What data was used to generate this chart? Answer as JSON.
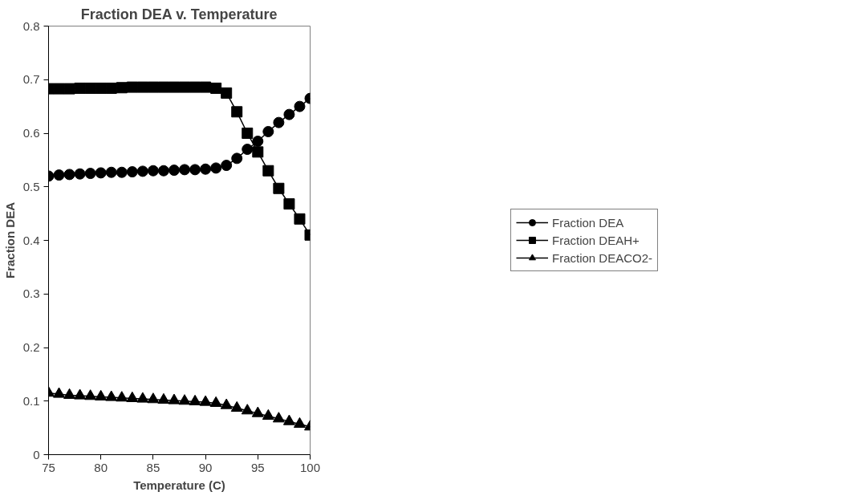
{
  "chart_data": {
    "type": "line",
    "title": "Fraction DEA v. Temperature",
    "xlabel": "Temperature (C)",
    "ylabel": "Fraction DEA",
    "x": [
      75,
      76,
      77,
      78,
      79,
      80,
      81,
      82,
      83,
      84,
      85,
      86,
      87,
      88,
      89,
      90,
      91,
      92,
      93,
      94,
      95,
      96,
      97,
      98,
      99,
      100
    ],
    "series": [
      {
        "name": "Fraction DEA",
        "color": "#000000",
        "marker": "circle",
        "values": [
          0.52,
          0.522,
          0.523,
          0.524,
          0.525,
          0.526,
          0.527,
          0.527,
          0.528,
          0.529,
          0.53,
          0.53,
          0.531,
          0.532,
          0.532,
          0.533,
          0.535,
          0.54,
          0.553,
          0.57,
          0.585,
          0.603,
          0.62,
          0.635,
          0.65,
          0.665
        ]
      },
      {
        "name": "Fraction DEAH+",
        "color": "#000000",
        "marker": "square",
        "values": [
          0.683,
          0.683,
          0.683,
          0.684,
          0.684,
          0.684,
          0.684,
          0.685,
          0.686,
          0.686,
          0.686,
          0.686,
          0.686,
          0.686,
          0.686,
          0.686,
          0.684,
          0.675,
          0.64,
          0.6,
          0.565,
          0.53,
          0.497,
          0.468,
          0.44,
          0.41
        ]
      },
      {
        "name": "Fraction DEACO2-",
        "color": "#000000",
        "marker": "triangle",
        "values": [
          0.115,
          0.113,
          0.111,
          0.11,
          0.109,
          0.108,
          0.107,
          0.106,
          0.105,
          0.104,
          0.103,
          0.102,
          0.101,
          0.1,
          0.099,
          0.098,
          0.096,
          0.092,
          0.087,
          0.082,
          0.077,
          0.072,
          0.067,
          0.062,
          0.057,
          0.052
        ]
      }
    ],
    "xlim": [
      75,
      100
    ],
    "xticks": [
      75,
      80,
      85,
      90,
      95,
      100
    ],
    "ylim": [
      0,
      0.8
    ],
    "yticks": [
      {
        "value": 0,
        "label": "0"
      },
      0.1,
      0.2,
      0.3,
      0.4,
      0.5,
      0.6,
      0.7,
      0.8
    ],
    "grid": false,
    "legend": "right",
    "line_style": "solid"
  }
}
